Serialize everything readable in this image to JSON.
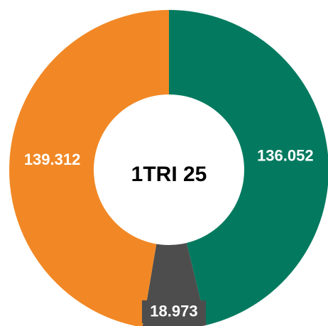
{
  "chart_data": {
    "type": "pie",
    "title": "1TRI 25",
    "series": [
      {
        "name": null,
        "color": "#037a5f",
        "values": [
          136.052
        ]
      },
      {
        "name": null,
        "color": "#4d4d4d",
        "values": [
          18.973
        ]
      },
      {
        "name": null,
        "color": "#f18825",
        "values": [
          139.312
        ]
      }
    ]
  }
}
